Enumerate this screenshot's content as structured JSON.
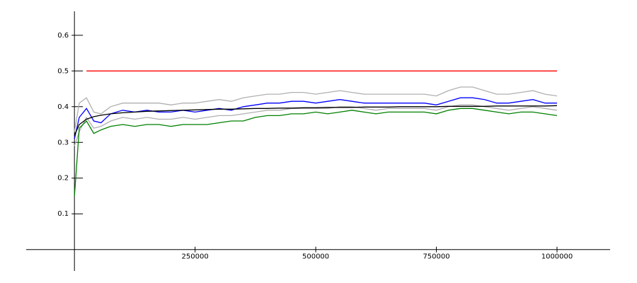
{
  "chart_data": {
    "type": "line",
    "x": [
      0,
      10000,
      25000,
      40000,
      55000,
      75000,
      100000,
      125000,
      150000,
      175000,
      200000,
      225000,
      250000,
      275000,
      300000,
      325000,
      350000,
      375000,
      400000,
      425000,
      450000,
      475000,
      500000,
      525000,
      550000,
      575000,
      600000,
      625000,
      650000,
      675000,
      700000,
      725000,
      750000,
      775000,
      800000,
      825000,
      850000,
      875000,
      900000,
      925000,
      950000,
      975000,
      1000000
    ],
    "series": [
      {
        "color": "#b0b0b0",
        "values": [
          0.33,
          0.41,
          0.425,
          0.385,
          0.38,
          0.4,
          0.41,
          0.41,
          0.41,
          0.41,
          0.405,
          0.41,
          0.41,
          0.415,
          0.42,
          0.415,
          0.425,
          0.43,
          0.435,
          0.435,
          0.44,
          0.44,
          0.435,
          0.44,
          0.445,
          0.44,
          0.435,
          0.435,
          0.435,
          0.435,
          0.435,
          0.435,
          0.43,
          0.445,
          0.455,
          0.455,
          0.445,
          0.435,
          0.435,
          0.44,
          0.445,
          0.435,
          0.43
        ]
      },
      {
        "color": "#b0b0b0",
        "values": [
          0.29,
          0.33,
          0.37,
          0.34,
          0.345,
          0.36,
          0.37,
          0.365,
          0.37,
          0.365,
          0.365,
          0.37,
          0.365,
          0.37,
          0.375,
          0.375,
          0.38,
          0.385,
          0.39,
          0.39,
          0.395,
          0.395,
          0.395,
          0.395,
          0.4,
          0.4,
          0.395,
          0.39,
          0.395,
          0.395,
          0.395,
          0.395,
          0.39,
          0.4,
          0.405,
          0.405,
          0.4,
          0.395,
          0.39,
          0.395,
          0.4,
          0.395,
          0.39
        ]
      },
      {
        "color": "#ff0000",
        "values": [
          null,
          null,
          0.5,
          0.5,
          0.5,
          0.5,
          0.5,
          0.5,
          0.5,
          0.5,
          0.5,
          0.5,
          0.5,
          0.5,
          0.5,
          0.5,
          0.5,
          0.5,
          0.5,
          0.5,
          0.5,
          0.5,
          0.5,
          0.5,
          0.5,
          0.5,
          0.5,
          0.5,
          0.5,
          0.5,
          0.5,
          0.5,
          0.5,
          0.5,
          0.5,
          0.5,
          0.5,
          0.5,
          0.5,
          0.5,
          0.5,
          0.5,
          0.5
        ]
      },
      {
        "color": "#008000",
        "values": [
          0.15,
          0.34,
          0.36,
          0.325,
          0.335,
          0.345,
          0.35,
          0.345,
          0.35,
          0.35,
          0.345,
          0.35,
          0.35,
          0.35,
          0.355,
          0.36,
          0.36,
          0.37,
          0.375,
          0.375,
          0.38,
          0.38,
          0.385,
          0.38,
          0.385,
          0.39,
          0.385,
          0.38,
          0.385,
          0.385,
          0.385,
          0.385,
          0.38,
          0.39,
          0.395,
          0.395,
          0.39,
          0.385,
          0.38,
          0.385,
          0.385,
          0.38,
          0.375
        ]
      },
      {
        "color": "#0000ff",
        "values": [
          0.31,
          0.37,
          0.395,
          0.36,
          0.355,
          0.38,
          0.39,
          0.385,
          0.39,
          0.385,
          0.385,
          0.39,
          0.385,
          0.39,
          0.395,
          0.39,
          0.4,
          0.405,
          0.41,
          0.41,
          0.415,
          0.415,
          0.41,
          0.415,
          0.42,
          0.415,
          0.41,
          0.41,
          0.41,
          0.41,
          0.41,
          0.41,
          0.405,
          0.415,
          0.425,
          0.425,
          0.42,
          0.41,
          0.41,
          0.415,
          0.42,
          0.41,
          0.41
        ]
      },
      {
        "color": "#000000",
        "values": [
          0.32,
          0.35,
          0.365,
          0.372,
          0.376,
          0.38,
          0.383,
          0.385,
          0.387,
          0.388,
          0.389,
          0.39,
          0.391,
          0.392,
          0.393,
          0.393,
          0.394,
          0.395,
          0.395,
          0.396,
          0.396,
          0.397,
          0.397,
          0.398,
          0.398,
          0.398,
          0.399,
          0.399,
          0.399,
          0.4,
          0.4,
          0.4,
          0.4,
          0.401,
          0.401,
          0.401,
          0.401,
          0.402,
          0.402,
          0.402,
          0.402,
          0.402,
          0.403
        ]
      }
    ],
    "xlim": [
      -100000,
      1110000
    ],
    "xticks": [
      250000,
      500000,
      750000,
      1000000
    ],
    "ylim": [
      -0.06,
      0.667
    ],
    "yticks": [
      0.1,
      0.2,
      0.3,
      0.4,
      0.5,
      0.6
    ]
  }
}
